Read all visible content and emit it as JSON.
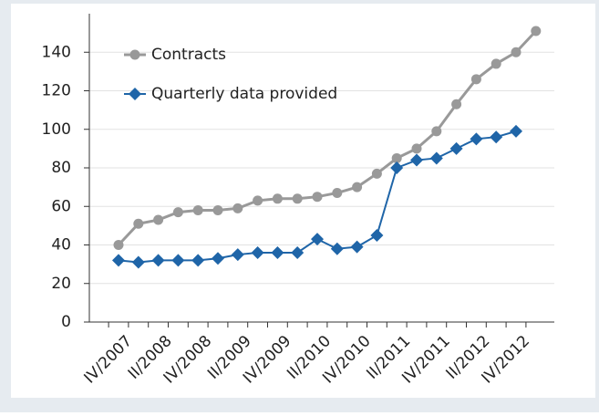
{
  "chart_data": {
    "type": "line",
    "categories": [
      "IV/2007",
      null,
      "II/2008",
      null,
      "IV/2008",
      null,
      "II/2009",
      null,
      "IV/2009",
      null,
      "II/2010",
      null,
      "IV/2010",
      null,
      "II/2011",
      null,
      "IV/2011",
      null,
      "II/2012",
      null,
      "IV/2012",
      null
    ],
    "series": [
      {
        "name": "Contracts",
        "color": "#999999",
        "values": [
          40,
          51,
          53,
          57,
          58,
          58,
          59,
          63,
          64,
          64,
          65,
          67,
          70,
          77,
          85,
          90,
          99,
          113,
          126,
          134,
          140,
          151
        ]
      },
      {
        "name": "Quarterly data provided",
        "color": "#1f65a8",
        "values": [
          32,
          31,
          32,
          32,
          32,
          33,
          35,
          36,
          36,
          36,
          43,
          38,
          39,
          45,
          80,
          84,
          85,
          90,
          95,
          96,
          99,
          null
        ]
      }
    ],
    "ylim": [
      0,
      160
    ],
    "yticks": [
      0,
      20,
      40,
      60,
      80,
      100,
      120,
      140
    ],
    "grid": true,
    "legend": "upper left"
  }
}
